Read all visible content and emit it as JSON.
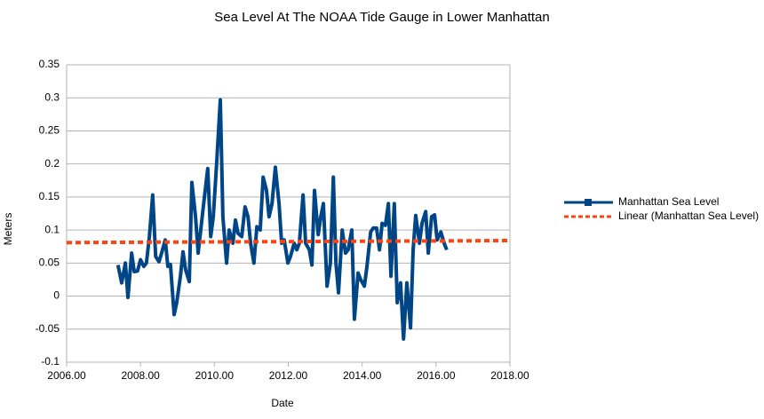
{
  "chart_data": {
    "type": "line",
    "title": "Sea Level At The NOAA Tide Gauge in Lower Manhattan",
    "x_label": "Date",
    "y_label": "Meters",
    "xlim": [
      2006,
      2018
    ],
    "ylim": [
      -0.1,
      0.35
    ],
    "xticks": [
      {
        "value": 2006,
        "label": "2006.00"
      },
      {
        "value": 2008,
        "label": "2008.00"
      },
      {
        "value": 2010,
        "label": "2010.00"
      },
      {
        "value": 2012,
        "label": "2012.00"
      },
      {
        "value": 2014,
        "label": "2014.00"
      },
      {
        "value": 2016,
        "label": "2016.00"
      },
      {
        "value": 2018,
        "label": "2018.00"
      }
    ],
    "yticks": [
      0.35,
      0.3,
      0.25,
      0.2,
      0.15,
      0.1,
      0.05,
      0,
      -0.05,
      -0.1
    ],
    "grid": true,
    "legend": "right",
    "series": [
      {
        "name": "Manhattan Sea Level",
        "color": "#004586",
        "marker": "square",
        "x": [
          2007.39,
          2007.49,
          2007.59,
          2007.66,
          2007.76,
          2007.83,
          2007.92,
          2008.0,
          2008.09,
          2008.16,
          2008.24,
          2008.33,
          2008.41,
          2008.5,
          2008.57,
          2008.67,
          2008.74,
          2008.81,
          2008.91,
          2008.98,
          2009.08,
          2009.15,
          2009.22,
          2009.32,
          2009.39,
          2009.49,
          2009.56,
          2009.63,
          2009.73,
          2009.82,
          2009.9,
          2009.97,
          2010.06,
          2010.16,
          2010.23,
          2010.33,
          2010.4,
          2010.5,
          2010.57,
          2010.64,
          2010.74,
          2010.83,
          2010.91,
          2010.98,
          2011.07,
          2011.15,
          2011.24,
          2011.32,
          2011.41,
          2011.48,
          2011.56,
          2011.65,
          2011.75,
          2011.82,
          2011.89,
          2011.99,
          2012.06,
          2012.16,
          2012.23,
          2012.3,
          2012.4,
          2012.47,
          2012.57,
          2012.64,
          2012.71,
          2012.81,
          2012.88,
          2012.95,
          2013.05,
          2013.14,
          2013.22,
          2013.29,
          2013.36,
          2013.46,
          2013.55,
          2013.62,
          2013.72,
          2013.79,
          2013.89,
          2013.96,
          2014.06,
          2014.13,
          2014.23,
          2014.3,
          2014.39,
          2014.47,
          2014.54,
          2014.63,
          2014.71,
          2014.78,
          2014.87,
          2014.95,
          2015.04,
          2015.12,
          2015.21,
          2015.31,
          2015.38,
          2015.45,
          2015.55,
          2015.62,
          2015.72,
          2015.79,
          2015.88,
          2015.96,
          2016.03,
          2016.13,
          2016.22,
          2016.29
        ],
        "values": [
          0.047,
          0.02,
          0.05,
          -0.002,
          0.065,
          0.037,
          0.038,
          0.055,
          0.045,
          0.05,
          0.09,
          0.153,
          0.06,
          0.052,
          0.065,
          0.085,
          0.045,
          0.048,
          -0.028,
          -0.01,
          0.03,
          0.067,
          0.04,
          0.022,
          0.172,
          0.12,
          0.065,
          0.1,
          0.15,
          0.193,
          0.09,
          0.12,
          0.2,
          0.297,
          0.12,
          0.05,
          0.1,
          0.08,
          0.115,
          0.095,
          0.09,
          0.135,
          0.12,
          0.08,
          0.05,
          0.105,
          0.1,
          0.18,
          0.16,
          0.12,
          0.14,
          0.195,
          0.14,
          0.08,
          0.085,
          0.05,
          0.06,
          0.08,
          0.07,
          0.08,
          0.153,
          0.08,
          0.07,
          0.047,
          0.16,
          0.093,
          0.12,
          0.14,
          0.015,
          0.05,
          0.18,
          0.05,
          0.005,
          0.1,
          0.065,
          0.07,
          0.1,
          -0.035,
          0.035,
          0.025,
          0.015,
          0.045,
          0.097,
          0.103,
          0.103,
          0.07,
          0.11,
          0.107,
          0.14,
          0.03,
          0.14,
          -0.01,
          0.02,
          -0.065,
          0.02,
          -0.048,
          0.07,
          0.122,
          0.08,
          0.11,
          0.128,
          0.065,
          0.12,
          0.123,
          0.085,
          0.097,
          0.08,
          0.07
        ]
      },
      {
        "name": "Linear (Manhattan Sea Level)",
        "color": "#ff420e",
        "dashed": true,
        "x": [
          2006,
          2018
        ],
        "values": [
          0.081,
          0.084
        ]
      }
    ]
  }
}
